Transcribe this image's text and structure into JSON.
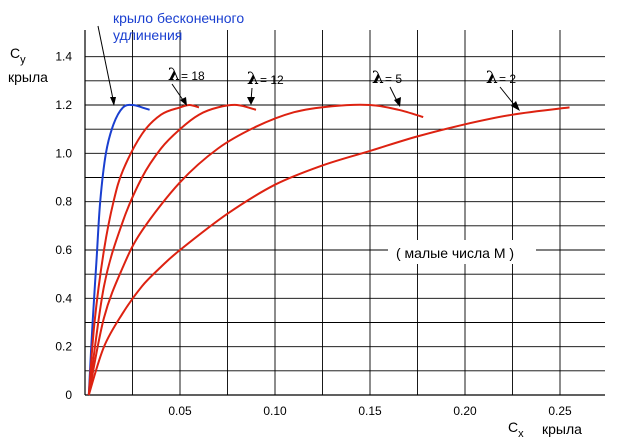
{
  "chart_data": {
    "type": "line",
    "ylabel_main": "C",
    "ylabel_sub": "y",
    "ylabel_line2": "крыла",
    "xlabel_main": "C",
    "xlabel_sub": "x",
    "xlabel_line2": "крыла",
    "xlim": [
      0,
      0.27
    ],
    "ylim": [
      0,
      1.5
    ],
    "x_ticks": [
      "0.05",
      "0.10",
      "0.15",
      "0.20",
      "0.25"
    ],
    "y_ticks": [
      "0",
      "0.2",
      "0.4",
      "0.6",
      "0.8",
      "1.0",
      "1.2",
      "1.4"
    ],
    "grid": true,
    "annotation": "( малые числа М )",
    "infinite_wing_label_line1": "крыло бесконечного",
    "infinite_wing_label_line2": "удлинения",
    "series": [
      {
        "name": "крыло бесконечного удлинения",
        "color": "#1a3fd0",
        "x": [
          0.002,
          0.004,
          0.006,
          0.008,
          0.011,
          0.015,
          0.02,
          0.025,
          0.03,
          0.034
        ],
        "y": [
          0.0,
          0.3,
          0.55,
          0.8,
          1.0,
          1.12,
          1.19,
          1.2,
          1.19,
          1.18
        ]
      },
      {
        "name": "18",
        "color": "#dd2211",
        "x": [
          0.002,
          0.005,
          0.01,
          0.015,
          0.02,
          0.03,
          0.04,
          0.05,
          0.055,
          0.06
        ],
        "y": [
          0.0,
          0.3,
          0.6,
          0.8,
          0.93,
          1.08,
          1.16,
          1.19,
          1.2,
          1.19
        ]
      },
      {
        "name": "12",
        "color": "#dd2211",
        "x": [
          0.002,
          0.01,
          0.02,
          0.03,
          0.04,
          0.05,
          0.06,
          0.07,
          0.08,
          0.09
        ],
        "y": [
          0.0,
          0.45,
          0.72,
          0.9,
          1.02,
          1.1,
          1.16,
          1.19,
          1.2,
          1.18
        ]
      },
      {
        "name": "5",
        "color": "#dd2211",
        "x": [
          0.002,
          0.01,
          0.02,
          0.03,
          0.05,
          0.07,
          0.09,
          0.11,
          0.13,
          0.15,
          0.165,
          0.178
        ],
        "y": [
          0.0,
          0.32,
          0.53,
          0.68,
          0.88,
          1.02,
          1.11,
          1.17,
          1.195,
          1.2,
          1.18,
          1.15
        ]
      },
      {
        "name": "2",
        "color": "#dd2211",
        "x": [
          0.002,
          0.01,
          0.02,
          0.03,
          0.04,
          0.05,
          0.075,
          0.1,
          0.125,
          0.15,
          0.175,
          0.2,
          0.225,
          0.255
        ],
        "y": [
          0.0,
          0.2,
          0.34,
          0.45,
          0.53,
          0.6,
          0.75,
          0.87,
          0.95,
          1.01,
          1.07,
          1.12,
          1.16,
          1.19
        ]
      }
    ],
    "lambda_labels": [
      {
        "text": "= 18"
      },
      {
        "text": "= 12"
      },
      {
        "text": "= 5"
      },
      {
        "text": "= 2"
      }
    ]
  }
}
